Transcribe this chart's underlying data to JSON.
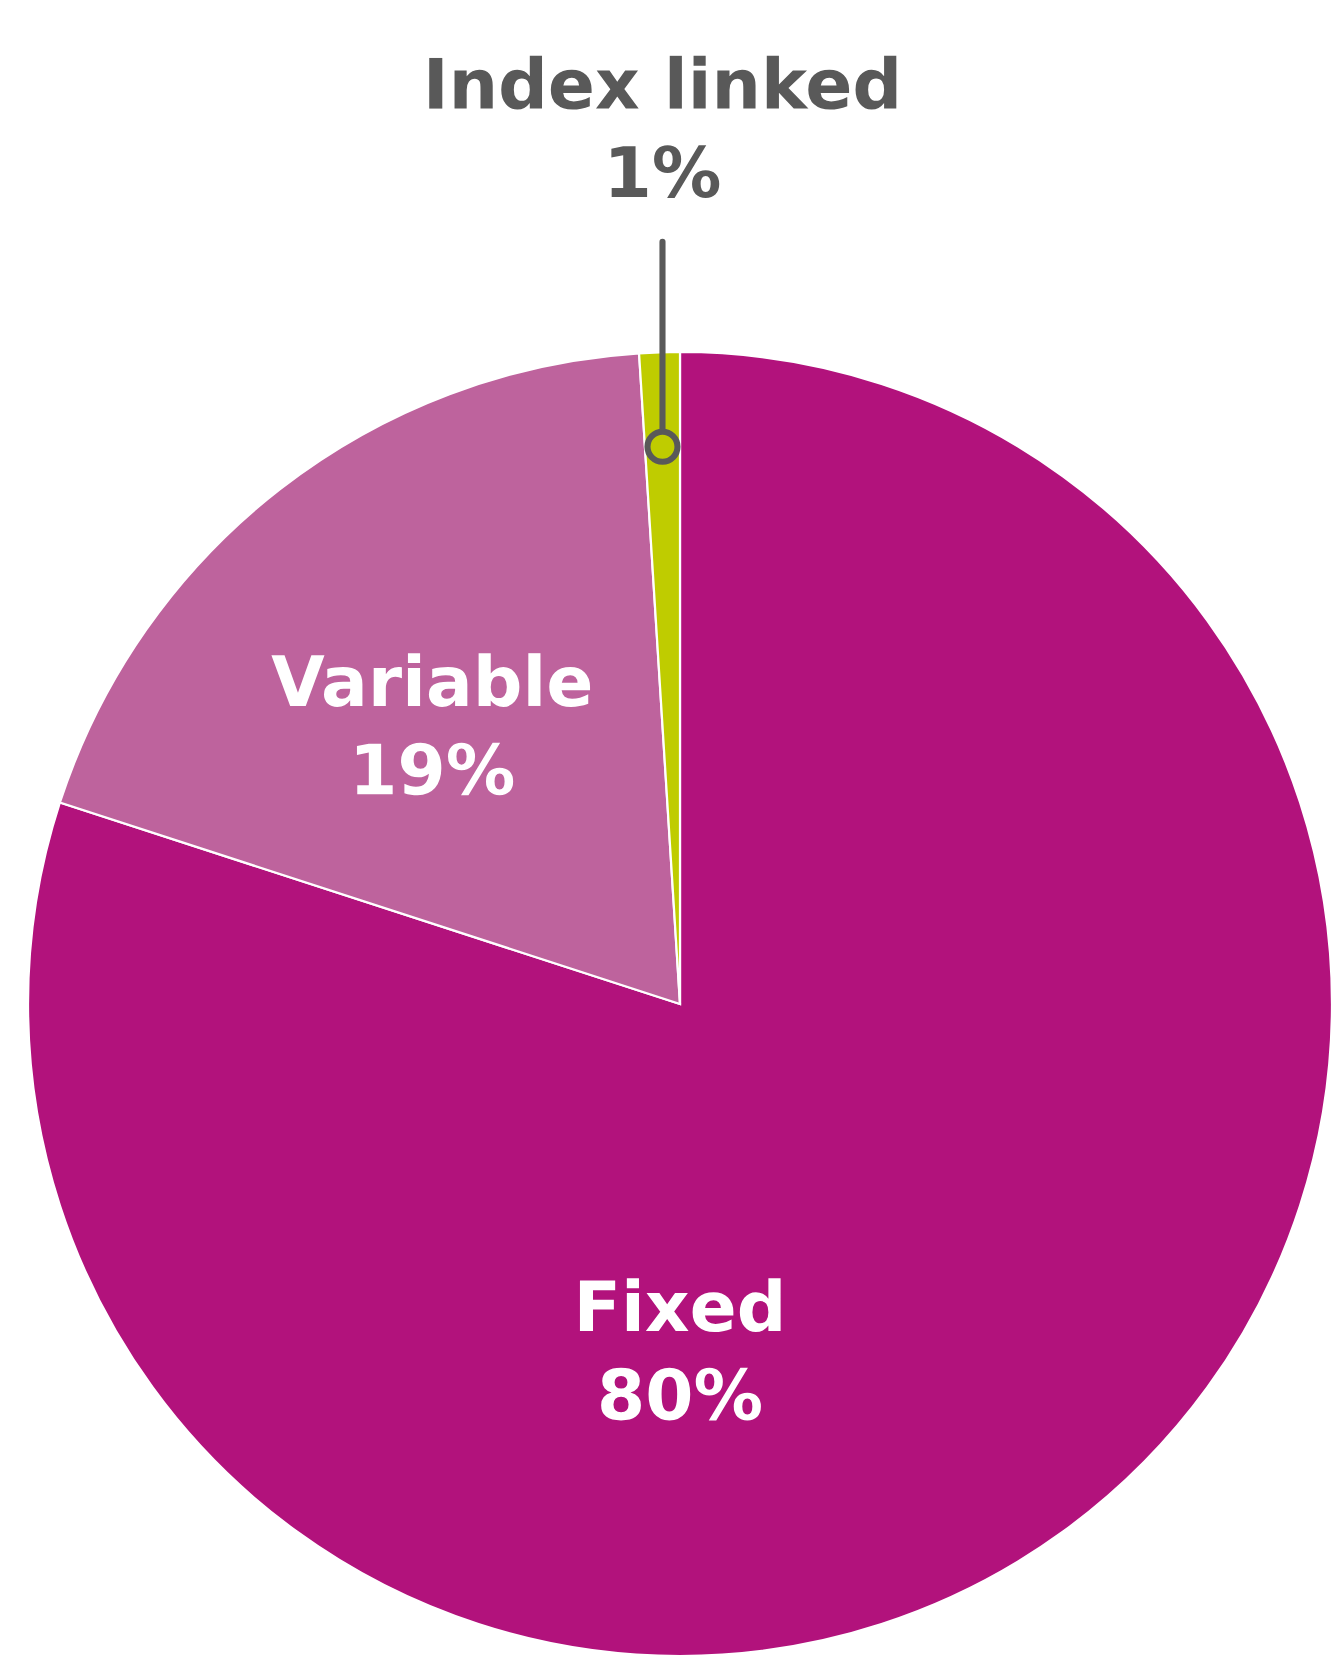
{
  "chart_data": {
    "type": "pie",
    "categories": [
      "Fixed",
      "Variable",
      "Index linked"
    ],
    "values": [
      80,
      19,
      1
    ],
    "colors": [
      "#b2127c",
      "#be639d",
      "#bfcc00"
    ],
    "value_labels": [
      "80%",
      "19%",
      "1%"
    ]
  }
}
